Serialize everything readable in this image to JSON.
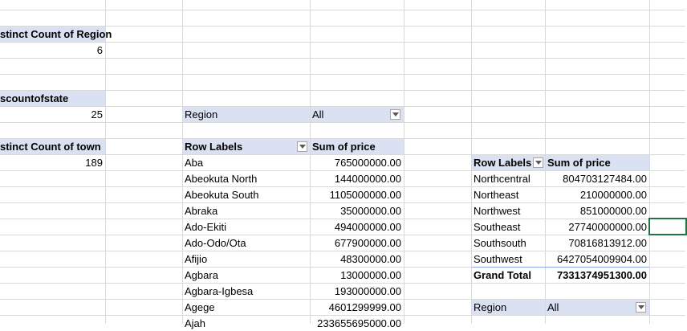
{
  "stats": {
    "region_count_label": "stinct Count of Region",
    "region_count_value": "6",
    "state_count_label": "scountofstate",
    "state_count_value": "25",
    "town_count_label": "stinct Count of town",
    "town_count_value": "189"
  },
  "filter1": {
    "label": "Region",
    "value": "All"
  },
  "pivot1": {
    "row_labels_header": "Row Labels",
    "sum_header": "Sum of price",
    "rows": [
      {
        "label": "Aba",
        "value": "765000000.00"
      },
      {
        "label": "Abeokuta North",
        "value": "144000000.00"
      },
      {
        "label": "Abeokuta South",
        "value": "1105000000.00"
      },
      {
        "label": "Abraka",
        "value": "35000000.00"
      },
      {
        "label": "Ado-Ekiti",
        "value": "494000000.00"
      },
      {
        "label": "Ado-Odo/Ota",
        "value": "677900000.00"
      },
      {
        "label": "Afijio",
        "value": "48300000.00"
      },
      {
        "label": "Agbara",
        "value": "13000000.00"
      },
      {
        "label": "Agbara-Igbesa",
        "value": "193000000.00"
      },
      {
        "label": "Agege",
        "value": "4601299999.00"
      },
      {
        "label": "Ajah",
        "value": "233655695000.00"
      }
    ]
  },
  "pivot2": {
    "row_labels_header": "Row Labels",
    "sum_header": "Sum of price",
    "rows": [
      {
        "label": "Northcentral",
        "value": "804703127484.00"
      },
      {
        "label": "Northeast",
        "value": "210000000.00"
      },
      {
        "label": "Northwest",
        "value": "851000000.00"
      },
      {
        "label": "Southeast",
        "value": "27740000000.00"
      },
      {
        "label": "Southsouth",
        "value": "70816813912.00"
      },
      {
        "label": "Southwest",
        "value": "6427054009904.00"
      }
    ],
    "total_label": "Grand Total",
    "total_value": "7331374951300.00"
  },
  "filter2": {
    "label": "Region",
    "value": "All"
  },
  "icons": {
    "dropdown": "chevron-down-icon"
  },
  "colors": {
    "header_fill": "#d9e1f2",
    "gridline": "#d9d9d9",
    "selection": "#217346"
  }
}
